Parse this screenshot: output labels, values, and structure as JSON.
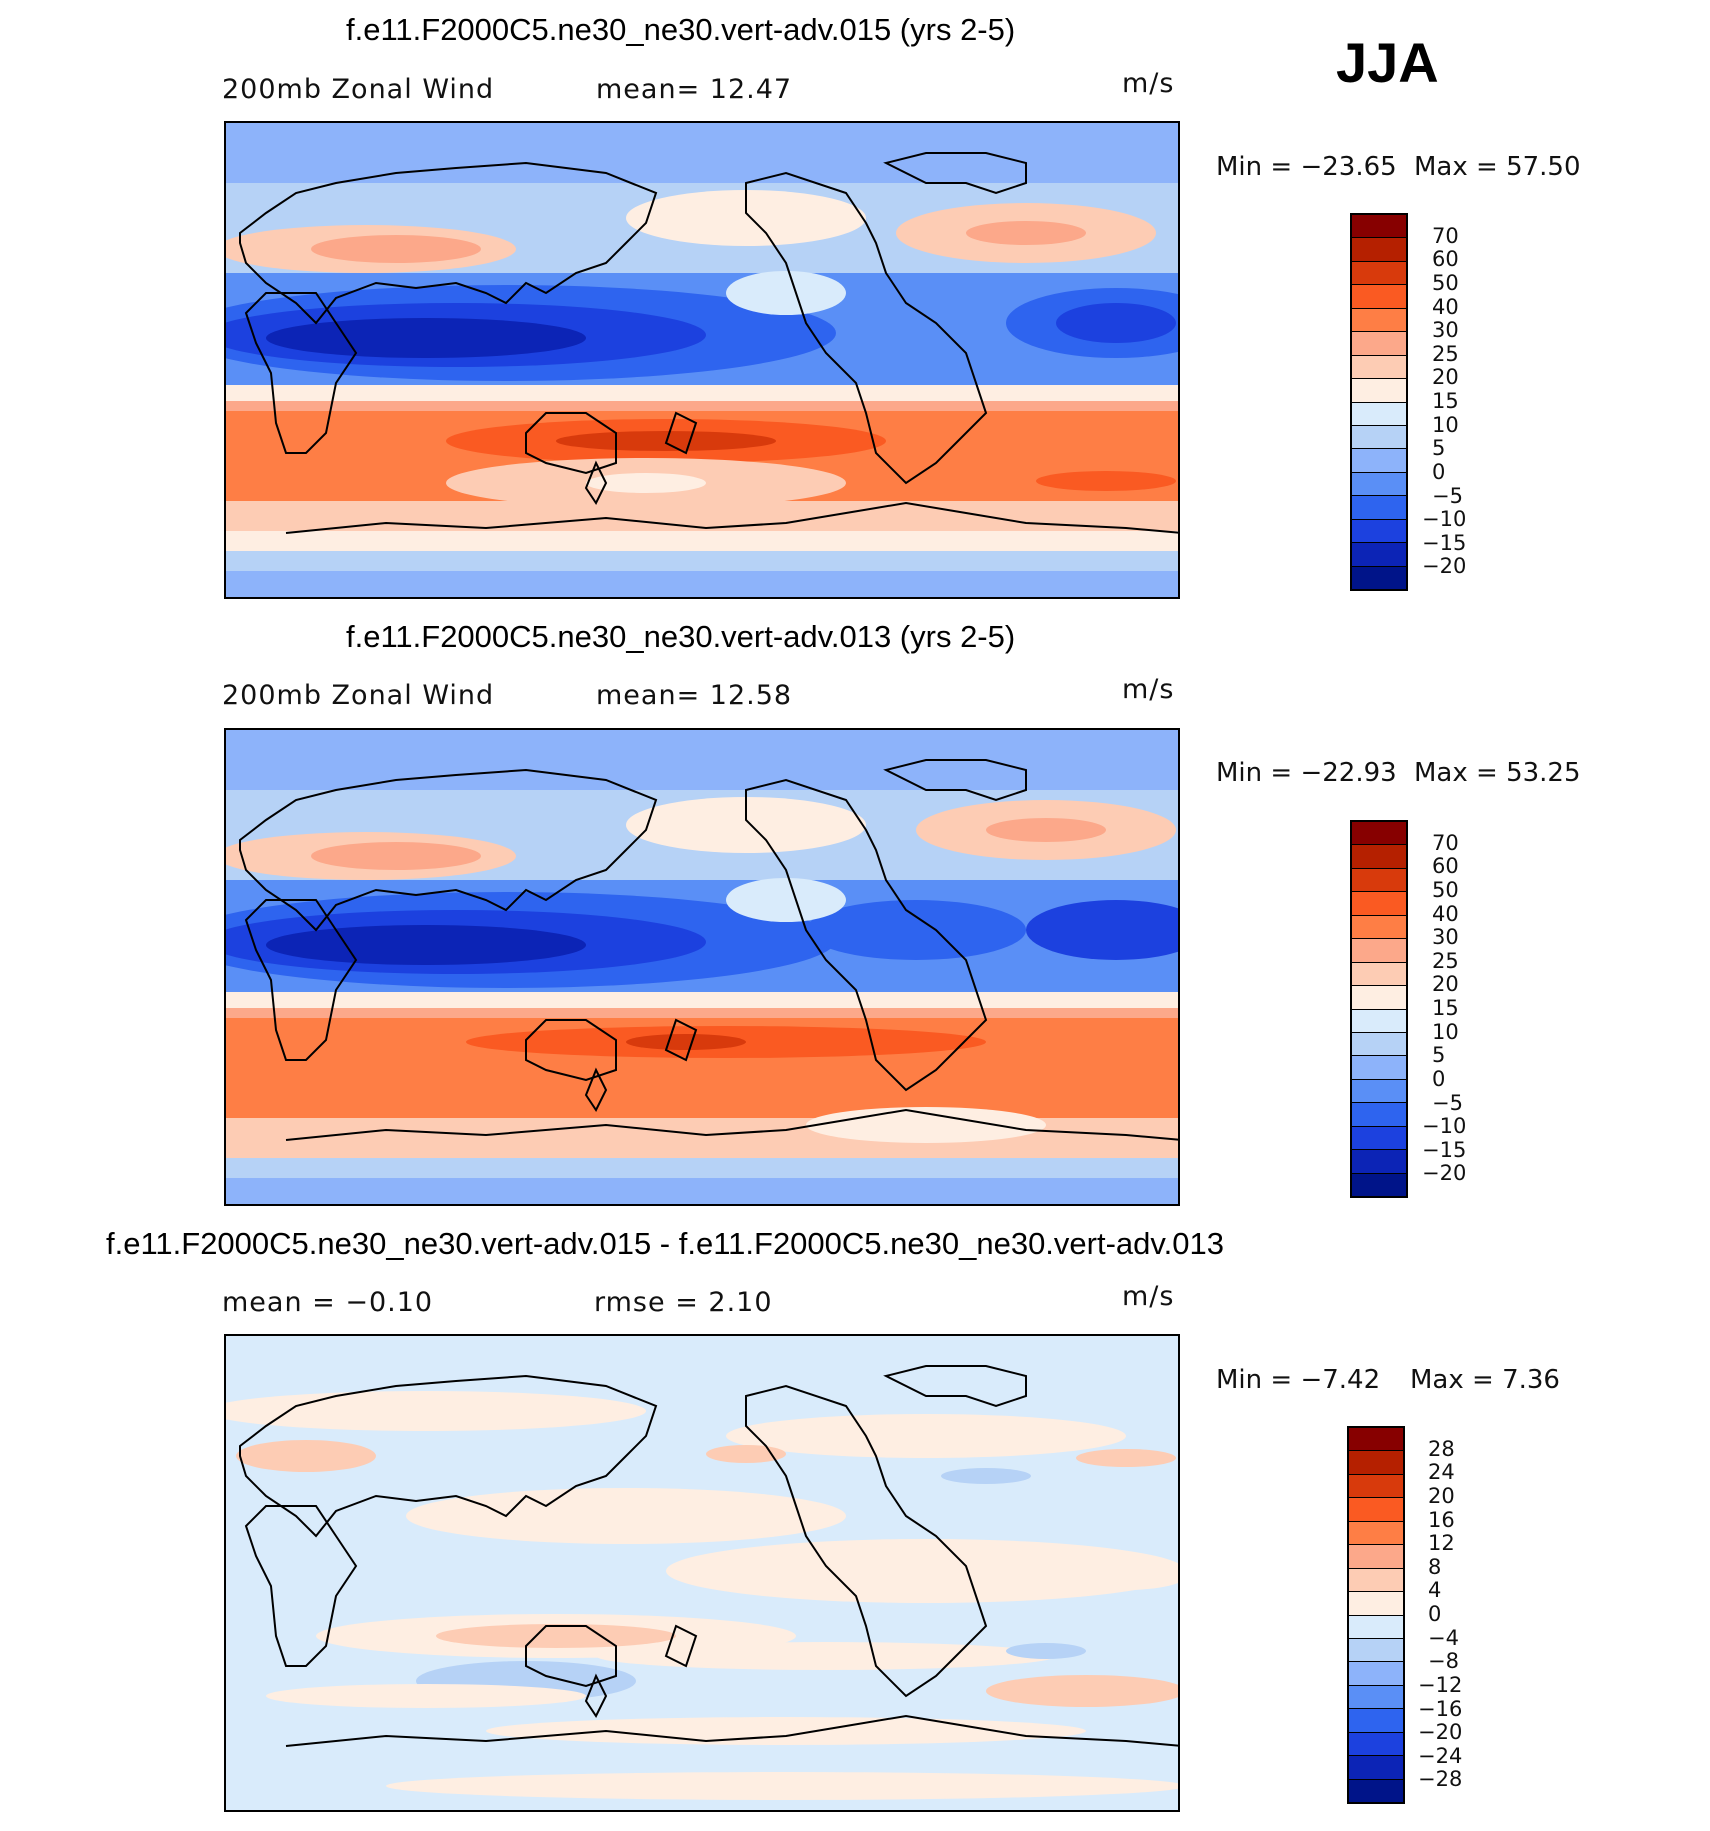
{
  "season": "JJA",
  "palette_abs": [
    "#870000",
    "#b52000",
    "#d83a0c",
    "#fa5a22",
    "#fe7e45",
    "#fca88a",
    "#fdccb4",
    "#feeee2",
    "#d9ebfb",
    "#b6d2f6",
    "#8db3fa",
    "#5a8ff6",
    "#2e64ef",
    "#1c41df",
    "#0c24b6",
    "#001489"
  ],
  "palette_diff": [
    "#870000",
    "#b52000",
    "#d83a0c",
    "#fa5a22",
    "#fe7e45",
    "#fca88a",
    "#fdccb4",
    "#feeee2",
    "#d9ebfb",
    "#b6d2f6",
    "#8db3fa",
    "#5a8ff6",
    "#2e64ef",
    "#1c41df",
    "#0c24b6",
    "#001489"
  ],
  "panels": [
    {
      "title": "f.e11.F2000C5.ne30_ne30.vert-adv.015 (yrs 2-5)",
      "left_label": "200mb  Zonal Wind",
      "center_label": "mean=   12.47",
      "units": "m/s",
      "min_label": "Min  =  −23.65",
      "max_label": "Max  =    57.50",
      "colorbar_labels": [
        "70",
        "60",
        "50",
        "40",
        "30",
        "25",
        "20",
        "15",
        "10",
        "5",
        "0",
        "−5",
        "−10",
        "−15",
        "−20"
      ]
    },
    {
      "title": "f.e11.F2000C5.ne30_ne30.vert-adv.013 (yrs 2-5)",
      "left_label": "200mb  Zonal Wind",
      "center_label": "mean=   12.58",
      "units": "m/s",
      "min_label": "Min  =  −22.93",
      "max_label": "Max  =    53.25",
      "colorbar_labels": [
        "70",
        "60",
        "50",
        "40",
        "30",
        "25",
        "20",
        "15",
        "10",
        "5",
        "0",
        "−5",
        "−10",
        "−15",
        "−20"
      ]
    },
    {
      "title": "f.e11.F2000C5.ne30_ne30.vert-adv.015 - f.e11.F2000C5.ne30_ne30.vert-adv.013",
      "left_label": "mean  =    −0.10",
      "center_label": "rmse  =     2.10",
      "units": "m/s",
      "min_label": "Min  =    −7.42",
      "max_label": "Max  =     7.36",
      "colorbar_labels": [
        "28",
        "24",
        "20",
        "16",
        "12",
        "8",
        "4",
        "0",
        "−4",
        "−8",
        "−12",
        "−16",
        "−20",
        "−24",
        "−28"
      ]
    }
  ]
}
